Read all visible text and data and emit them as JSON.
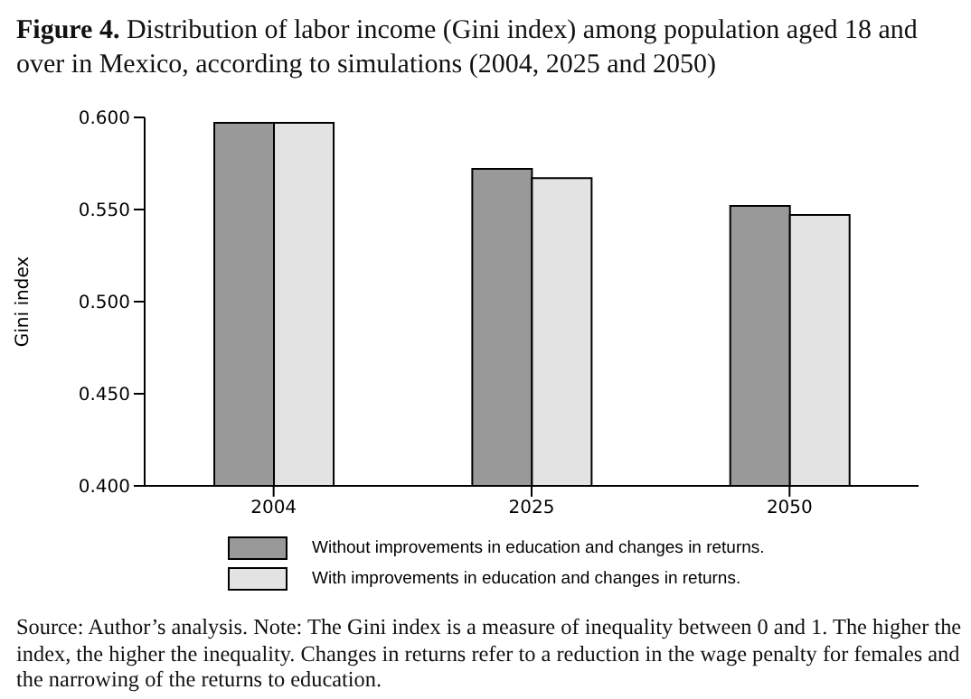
{
  "chart_data": {
    "type": "bar",
    "title": "Figure 4. Distribution of labor income (Gini index) among population aged 18 and over in Mexico, according to simulations (2004, 2025 and 2050)",
    "ylabel": "Gini index",
    "categories": [
      "2004",
      "2025",
      "2050"
    ],
    "series": [
      {
        "name": "Without improvements in education and changes in returns.",
        "color": "#999999",
        "values": [
          0.597,
          0.572,
          0.552
        ]
      },
      {
        "name": "With improvements in education and changes in returns.",
        "color": "#e3e3e3",
        "values": [
          0.597,
          0.567,
          0.547
        ]
      }
    ],
    "ylim": [
      0.4,
      0.6
    ],
    "yticks": [
      {
        "value": 0.4,
        "label": "0.400"
      },
      {
        "value": 0.45,
        "label": "0.450"
      },
      {
        "value": 0.5,
        "label": "0.500"
      },
      {
        "value": 0.55,
        "label": "0.550"
      },
      {
        "value": 0.6,
        "label": "0.600"
      }
    ],
    "grid": false,
    "legend": "bottom",
    "annotations": [
      "Source: Author’s analysis. Note: The Gini index is a measure of inequality between 0 and 1. The higher the index, the higher the inequality. Changes in returns refer to a reduction in the wage penalty for females and the narrowing of the returns to education."
    ]
  }
}
